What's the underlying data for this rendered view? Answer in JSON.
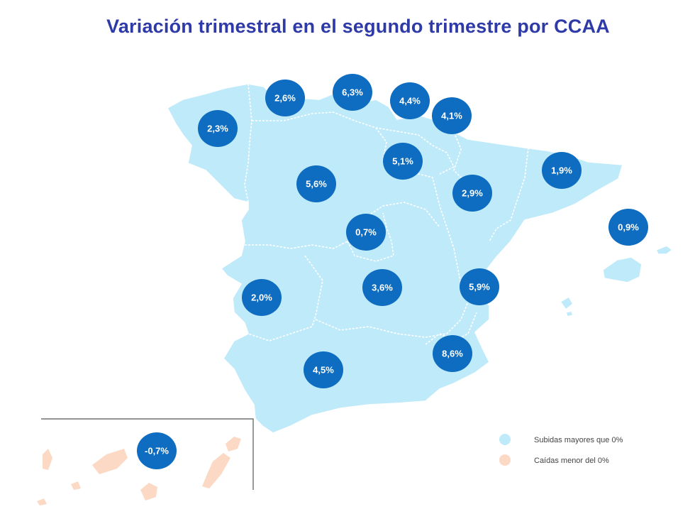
{
  "title": "Variación trimestral en el segundo trimestre por CCAA",
  "colors": {
    "rise": "#bfeafa",
    "fall": "#fbd9c4",
    "bubble": "#0e6dc0",
    "title": "#2e3aa8"
  },
  "regions": [
    {
      "id": "galicia",
      "value": "2,3%"
    },
    {
      "id": "asturias",
      "value": "2,6%"
    },
    {
      "id": "pais-vasco",
      "value": "6,3%"
    },
    {
      "id": "cantabria",
      "value": "4,4%"
    },
    {
      "id": "navarra",
      "value": "4,1%"
    },
    {
      "id": "la-rioja",
      "value": "5,1%"
    },
    {
      "id": "castilla-leon",
      "value": "5,6%"
    },
    {
      "id": "aragon",
      "value": "2,9%"
    },
    {
      "id": "cataluna",
      "value": "1,9%"
    },
    {
      "id": "baleares",
      "value": "0,9%"
    },
    {
      "id": "madrid",
      "value": "0,7%"
    },
    {
      "id": "extremadura",
      "value": "2,0%"
    },
    {
      "id": "castilla-la-mancha",
      "value": "3,6%"
    },
    {
      "id": "valencia",
      "value": "5,9%"
    },
    {
      "id": "murcia",
      "value": "8,6%"
    },
    {
      "id": "andalucia",
      "value": "4,5%"
    },
    {
      "id": "canarias",
      "value": "-0,7%"
    }
  ],
  "legend": {
    "rise_label": "Subidas mayores que 0%",
    "fall_label": "Caídas menor del 0%"
  }
}
